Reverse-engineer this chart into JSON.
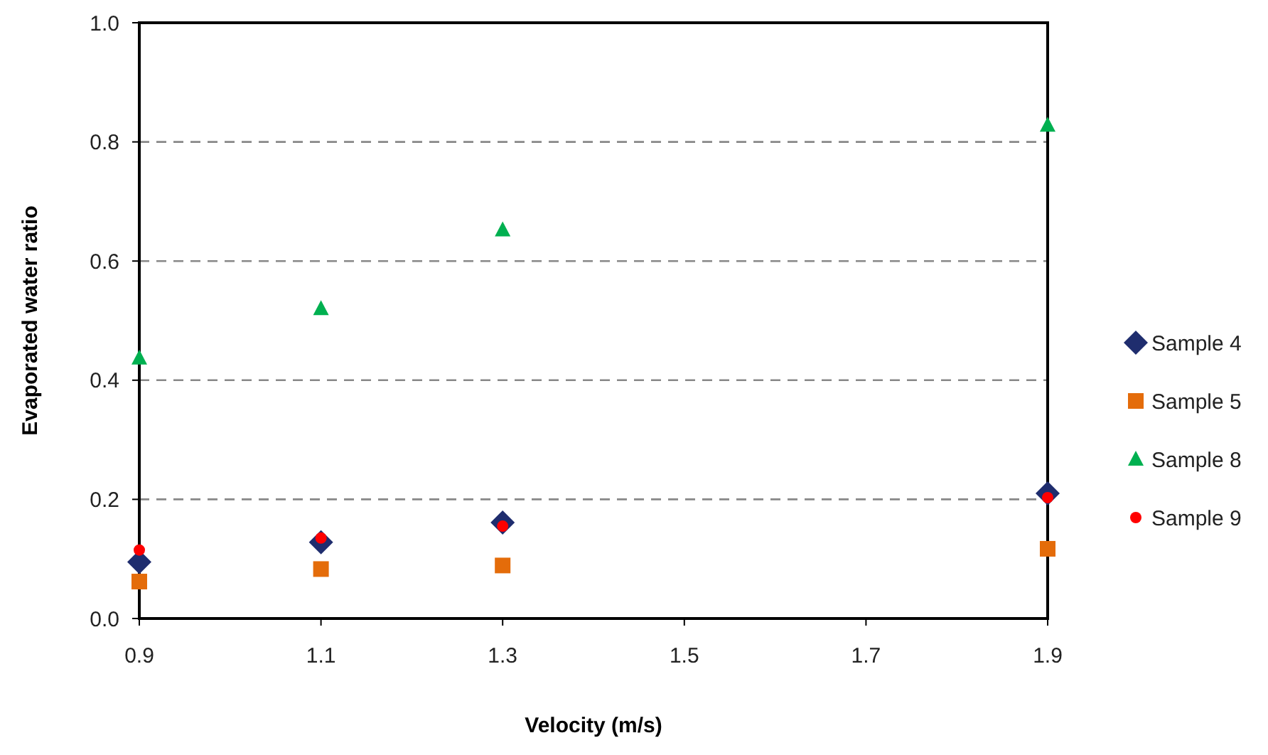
{
  "chart_data": {
    "type": "scatter",
    "xlabel": "Velocity (m/s)",
    "ylabel": "Evaporated water ratio",
    "x": [
      0.9,
      1.1,
      1.3,
      1.9
    ],
    "xlim": [
      0.9,
      1.9
    ],
    "xticks": [
      0.9,
      1.1,
      1.3,
      1.5,
      1.7,
      1.9
    ],
    "ylim": [
      0,
      1
    ],
    "yticks": [
      {
        "value": 0,
        "label": "0.0"
      },
      0.2,
      0.4,
      0.6,
      0.8,
      {
        "value": 1,
        "label": "1.0"
      }
    ],
    "grid": "y",
    "legend": "right",
    "series": [
      {
        "name": "Sample 4",
        "color": "#1f2d6e",
        "marker": "diamond",
        "values": [
          0.095,
          0.128,
          0.161,
          0.21
        ]
      },
      {
        "name": "Sample 5",
        "color": "#e46c0a",
        "marker": "square",
        "values": [
          0.062,
          0.083,
          0.089,
          0.117
        ]
      },
      {
        "name": "Sample 8",
        "color": "#00b050",
        "marker": "triangle",
        "values": [
          0.437,
          0.52,
          0.652,
          0.828
        ]
      },
      {
        "name": "Sample 9",
        "color": "#ff0000",
        "marker": "circle",
        "values": [
          0.115,
          0.135,
          0.155,
          0.203
        ]
      }
    ]
  }
}
